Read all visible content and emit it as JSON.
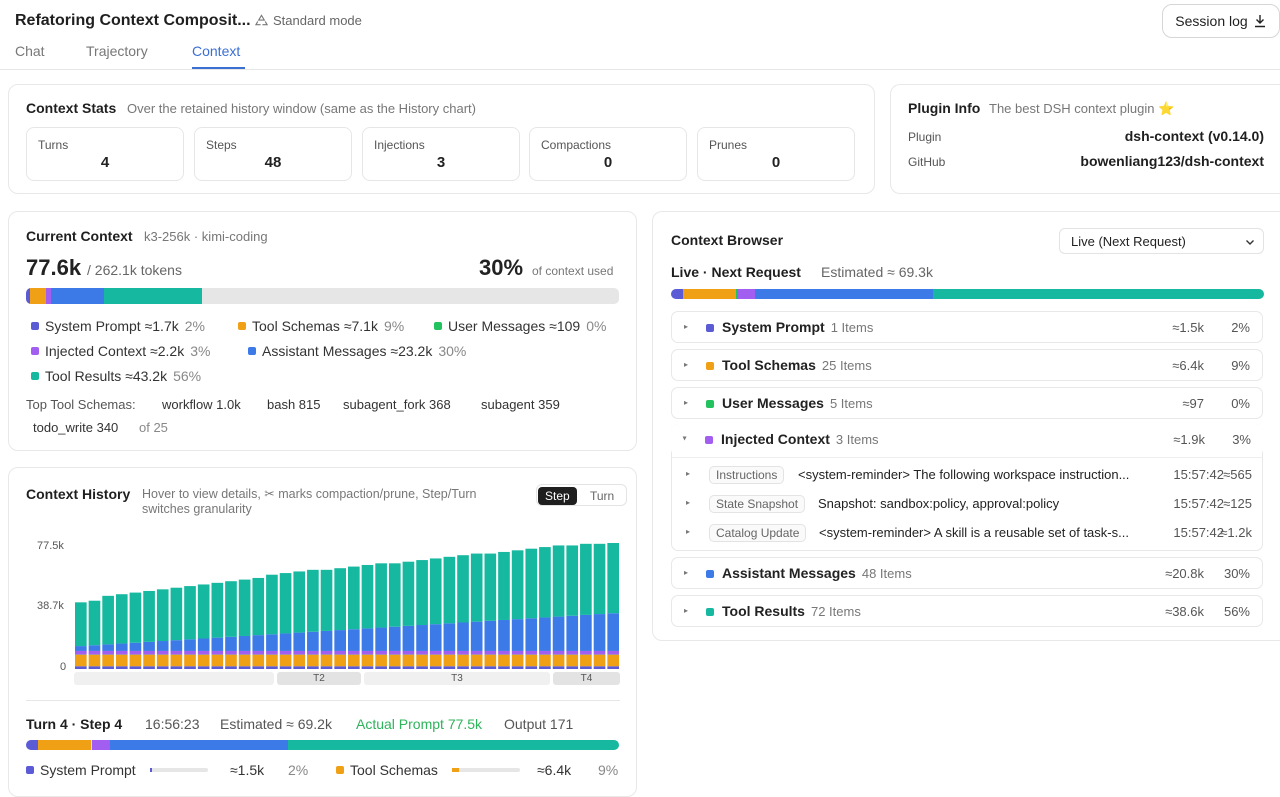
{
  "header": {
    "title": "Refatoring Context Composit...",
    "mode": "Standard mode",
    "session_log": "Session log"
  },
  "tabs": [
    {
      "label": "Chat"
    },
    {
      "label": "Trajectory"
    },
    {
      "label": "Context",
      "active": true
    }
  ],
  "colors": {
    "system": "#5b5bd6",
    "tools": "#f0a014",
    "user": "#22c35e",
    "injected": "#a15ef0",
    "assistant": "#3c7ae8",
    "results": "#17b8a0",
    "accent": "#3b6fd4"
  },
  "context_stats": {
    "title": "Context Stats",
    "subtitle": "Over the retained history window (same as the History chart)",
    "stats": [
      {
        "label": "Turns",
        "value": "4"
      },
      {
        "label": "Steps",
        "value": "48"
      },
      {
        "label": "Injections",
        "value": "3"
      },
      {
        "label": "Compactions",
        "value": "0"
      },
      {
        "label": "Prunes",
        "value": "0"
      }
    ]
  },
  "plugin_info": {
    "title": "Plugin Info",
    "subtitle": "The best DSH context plugin ⭐",
    "plugin_label": "Plugin",
    "plugin_value": "dsh-context (v0.14.0)",
    "github_label": "GitHub",
    "github_value": "bowenliang123/dsh-context"
  },
  "current_context": {
    "title": "Current Context",
    "model": "k3-256k · kimi-coding",
    "tokens": "77.6k",
    "total": "/ 262.1k tokens",
    "percent": "30%",
    "percent_label": "of context used",
    "bar": [
      {
        "key": "system",
        "pct": 0.7
      },
      {
        "key": "tools",
        "pct": 2.7
      },
      {
        "key": "user",
        "pct": 0.04
      },
      {
        "key": "injected",
        "pct": 0.8
      },
      {
        "key": "assistant",
        "pct": 8.9
      },
      {
        "key": "results",
        "pct": 16.5
      }
    ],
    "legend": [
      {
        "label": "System Prompt ≈1.7k",
        "pct": "2%",
        "color": "#5b5bd6"
      },
      {
        "label": "Tool Schemas ≈7.1k",
        "pct": "9%",
        "color": "#f0a014"
      },
      {
        "label": "User Messages ≈109",
        "pct": "0%",
        "color": "#22c35e"
      },
      {
        "label": "Injected Context ≈2.2k",
        "pct": "3%",
        "color": "#a15ef0"
      },
      {
        "label": "Assistant Messages ≈23.2k",
        "pct": "30%",
        "color": "#3c7ae8"
      },
      {
        "label": "Tool Results ≈43.2k",
        "pct": "56%",
        "color": "#17b8a0"
      }
    ],
    "top_tools_label": "Top Tool Schemas:",
    "top_tools": [
      "workflow 1.0k",
      "bash 815",
      "subagent_fork 368",
      "subagent 359",
      "todo_write 340"
    ],
    "top_tools_total": "of 25"
  },
  "history": {
    "title": "Context History",
    "hint": "Hover to view details, ✂ marks compaction/prune, Step/Turn switches granularity",
    "gran_step": "Step",
    "gran_turn": "Turn",
    "y_ticks": [
      "77.5k",
      "38.7k",
      "0"
    ],
    "turns": [
      "T2",
      "T3",
      "T4"
    ],
    "chart_data": {
      "type": "bar",
      "stacked": true,
      "ylim": [
        0,
        77.5
      ],
      "totals": [
        41,
        42,
        45,
        46,
        47,
        48,
        49,
        50,
        51,
        52,
        53,
        54,
        55,
        56,
        58,
        59,
        60,
        61,
        61,
        62,
        63,
        64,
        65,
        65,
        66,
        67,
        68,
        69,
        70,
        71,
        71,
        72,
        73,
        74,
        75,
        76,
        76,
        77,
        77,
        77.5
      ],
      "series": [
        {
          "key": "system",
          "value": 1.7
        },
        {
          "key": "tools",
          "value": 7.1
        },
        {
          "key": "user",
          "value": 0.1
        },
        {
          "key": "injected",
          "value": 2.2
        }
      ],
      "assistant_start": 3,
      "assistant_end": 23.2
    }
  },
  "step_detail": {
    "title": "Turn 4 · Step 4",
    "time": "16:56:23",
    "estimated": "Estimated ≈ 69.2k",
    "actual": "Actual Prompt 77.5k",
    "output": "Output 171",
    "rows": [
      {
        "label": "System Prompt",
        "tokens": "≈1.5k",
        "pct": "2%",
        "color": "#5b5bd6",
        "fill": 0.03
      },
      {
        "label": "Tool Schemas",
        "tokens": "≈6.4k",
        "pct": "9%",
        "color": "#f0a014",
        "fill": 0.1
      }
    ]
  },
  "browser": {
    "title": "Context Browser",
    "select": "Live (Next Request)",
    "live_title": "Live · Next Request",
    "estimated": "Estimated ≈ 69.3k",
    "bar": [
      {
        "key": "system",
        "pct": 2
      },
      {
        "key": "tools",
        "pct": 9
      },
      {
        "key": "user",
        "pct": 0.2
      },
      {
        "key": "injected",
        "pct": 3
      },
      {
        "key": "assistant",
        "pct": 30
      },
      {
        "key": "results",
        "pct": 56
      }
    ],
    "rows": [
      {
        "label": "System Prompt",
        "count": "1 Items",
        "tokens": "≈1.5k",
        "pct": "2%",
        "color": "#5b5bd6"
      },
      {
        "label": "Tool Schemas",
        "count": "25 Items",
        "tokens": "≈6.4k",
        "pct": "9%",
        "color": "#f0a014"
      },
      {
        "label": "User Messages",
        "count": "5 Items",
        "tokens": "≈97",
        "pct": "0%",
        "color": "#22c35e"
      },
      {
        "label": "Injected Context",
        "count": "3 Items",
        "tokens": "≈1.9k",
        "pct": "3%",
        "color": "#a15ef0"
      },
      {
        "label": "Assistant Messages",
        "count": "48 Items",
        "tokens": "≈20.8k",
        "pct": "30%",
        "color": "#3c7ae8"
      },
      {
        "label": "Tool Results",
        "count": "72 Items",
        "tokens": "≈38.6k",
        "pct": "56%",
        "color": "#17b8a0"
      }
    ],
    "injected_items": [
      {
        "tag": "Instructions",
        "text": "<system-reminder> The following workspace instruction...",
        "time": "15:57:42",
        "tokens": "≈565"
      },
      {
        "tag": "State Snapshot",
        "text": "Snapshot: sandbox:policy, approval:policy",
        "time": "15:57:42",
        "tokens": "≈125"
      },
      {
        "tag": "Catalog Update",
        "text": "<system-reminder> A skill is a reusable set of task-s...",
        "time": "15:57:42",
        "tokens": "≈1.2k"
      }
    ]
  }
}
